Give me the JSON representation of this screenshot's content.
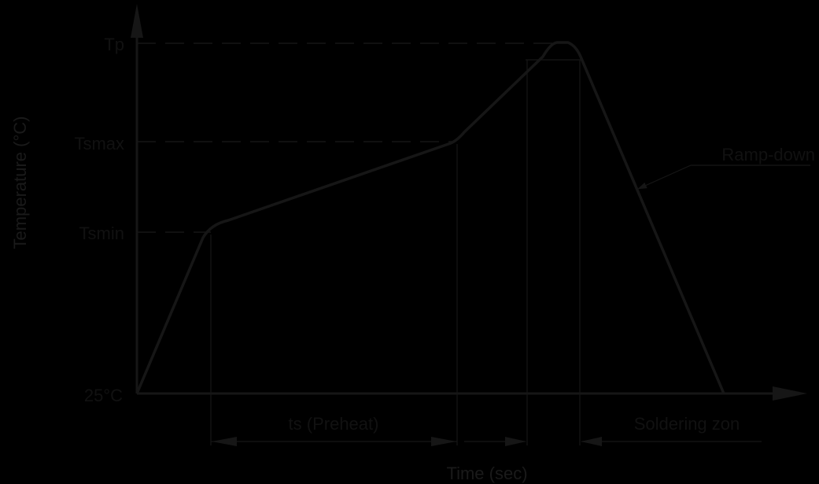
{
  "diagram": {
    "y_axis_label": "Temperature (°C)",
    "x_axis_label": "Time (sec)",
    "levels": {
      "tp": "Tp",
      "tsmax": "Tsmax",
      "tsmin": "Tsmin",
      "ambient": "25°C"
    },
    "annotations": {
      "ramp_down": "Ramp-down",
      "preheat": "ts (Preheat)",
      "soldering_zone": "Soldering zon"
    },
    "colors": {
      "background": "#000000",
      "ink": "#161616",
      "text": "#111111"
    }
  }
}
